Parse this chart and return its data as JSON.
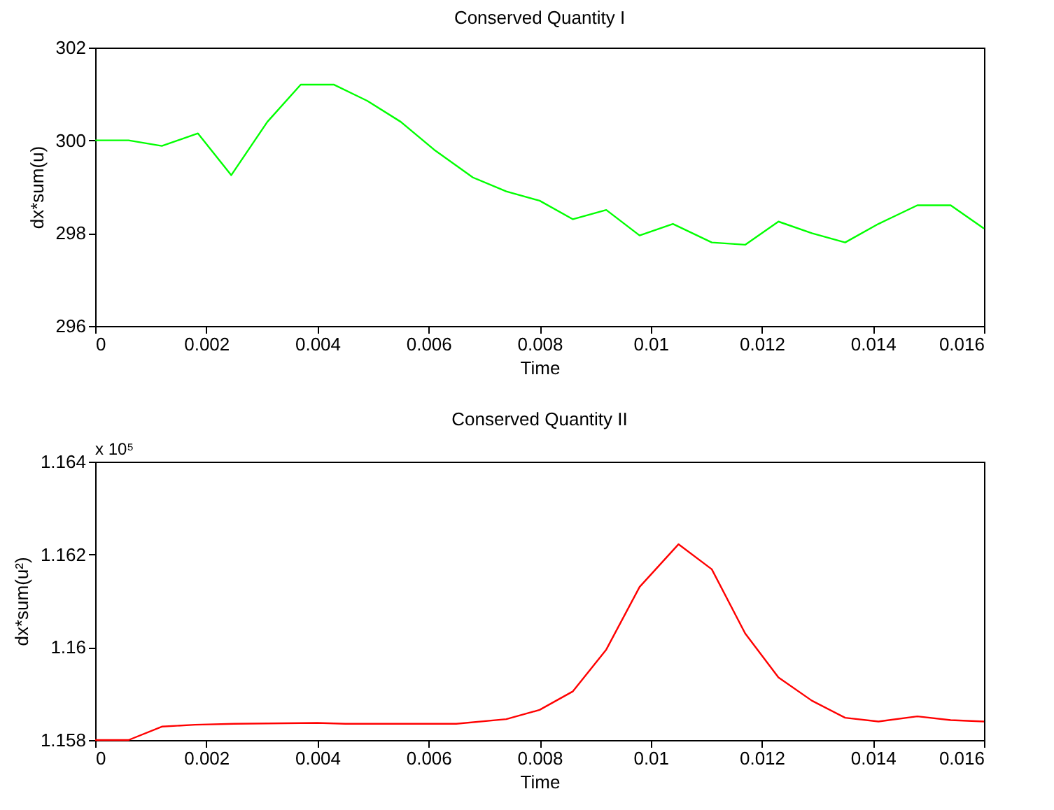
{
  "chart_data": [
    {
      "type": "line",
      "title": "Conserved Quantity I",
      "xlabel": "Time",
      "ylabel": "dx*sum(u)",
      "x": [
        0,
        0.0006,
        0.0012,
        0.00185,
        0.00245,
        0.0031,
        0.0037,
        0.0043,
        0.0049,
        0.0055,
        0.0061,
        0.0068,
        0.0074,
        0.008,
        0.0086,
        0.0092,
        0.0098,
        0.0104,
        0.0111,
        0.0117,
        0.0123,
        0.0129,
        0.0135,
        0.0141,
        0.0148,
        0.0154,
        0.016
      ],
      "series": [
        {
          "color": "#00ff00",
          "values": [
            300,
            300,
            299.88,
            300.15,
            299.25,
            300.4,
            301.2,
            301.2,
            300.85,
            300.4,
            299.8,
            299.2,
            298.9,
            298.7,
            298.3,
            298.5,
            297.95,
            298.2,
            297.8,
            297.75,
            298.25,
            298.0,
            297.8,
            298.2,
            298.6,
            298.6,
            298.1
          ]
        }
      ],
      "xlim": [
        0,
        0.016
      ],
      "ylim": [
        296,
        302
      ],
      "xticks": [
        0,
        0.002,
        0.004,
        0.006,
        0.008,
        0.01,
        0.012,
        0.014,
        0.016
      ],
      "yticks": [
        296,
        298,
        300,
        302
      ]
    },
    {
      "type": "line",
      "title": "Conserved Quantity II",
      "xlabel": "Time",
      "ylabel": "dx*sum(u²)",
      "annotations": [
        "x 10⁵"
      ],
      "x": [
        0,
        0.0006,
        0.0012,
        0.0018,
        0.0025,
        0.004,
        0.0045,
        0.0065,
        0.0074,
        0.008,
        0.0086,
        0.0092,
        0.0098,
        0.0105,
        0.0111,
        0.0117,
        0.0123,
        0.0129,
        0.0135,
        0.0141,
        0.0148,
        0.0154,
        0.016
      ],
      "series": [
        {
          "color": "#ff0000",
          "values": [
            1.158,
            1.158,
            1.15829,
            1.15833,
            1.15835,
            1.15837,
            1.15835,
            1.15835,
            1.15845,
            1.15865,
            1.15905,
            1.15995,
            1.1613,
            1.16222,
            1.16168,
            1.1603,
            1.15935,
            1.15885,
            1.15848,
            1.1584,
            1.15851,
            1.15843,
            1.1584
          ]
        }
      ],
      "xlim": [
        0,
        0.016
      ],
      "ylim": [
        1.158,
        1.164
      ],
      "xticks": [
        0,
        0.002,
        0.004,
        0.006,
        0.008,
        0.01,
        0.012,
        0.014,
        0.016
      ],
      "yticks": [
        1.158,
        1.16,
        1.162,
        1.164
      ]
    }
  ]
}
